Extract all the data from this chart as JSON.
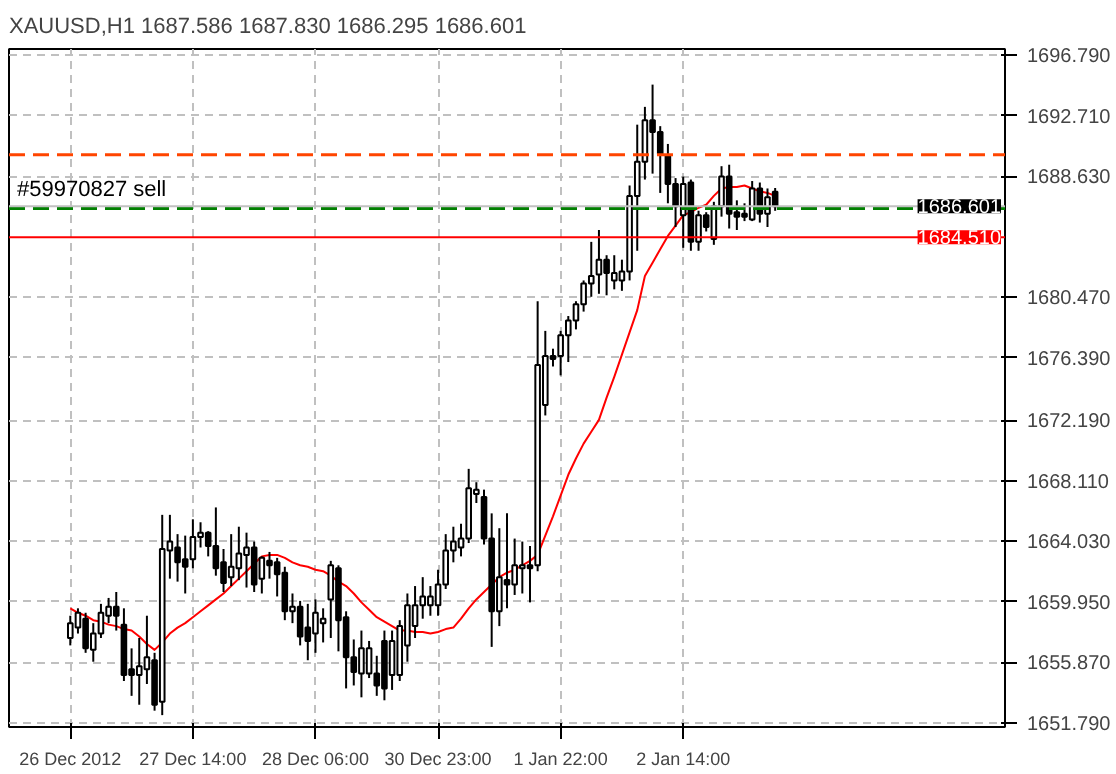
{
  "chart_data": {
    "type": "candlestick",
    "title": "XAUUSD,H1  1687.586 1687.830 1686.295 1686.601",
    "categories": [
      "26 Dec 2012",
      null,
      null,
      null,
      null,
      null,
      null,
      null,
      null,
      null,
      null,
      null,
      null,
      null,
      null,
      null,
      "27 Dec 14:00",
      null,
      null,
      null,
      null,
      null,
      null,
      null,
      null,
      null,
      null,
      null,
      null,
      null,
      null,
      null,
      "28 Dec 06:00",
      null,
      null,
      null,
      null,
      null,
      null,
      null,
      null,
      null,
      null,
      null,
      null,
      null,
      null,
      null,
      "30 Dec 23:00",
      null,
      null,
      null,
      null,
      null,
      null,
      null,
      null,
      null,
      null,
      null,
      null,
      null,
      null,
      null,
      "1 Jan 22:00",
      null,
      null,
      null,
      null,
      null,
      null,
      null,
      null,
      null,
      null,
      null,
      null,
      null,
      null,
      null,
      "2 Jan 14:00",
      null,
      null,
      null,
      null,
      null,
      null,
      null,
      null,
      null,
      null,
      null,
      null
    ],
    "ohlc": [
      [
        1657.5,
        1659.0,
        1657.0,
        1658.5
      ],
      [
        1658.2,
        1659.5,
        1657.8,
        1659.2
      ],
      [
        1658.8,
        1659.2,
        1656.5,
        1656.8
      ],
      [
        1656.7,
        1658.5,
        1655.9,
        1657.8
      ],
      [
        1657.8,
        1659.8,
        1657.5,
        1659.2
      ],
      [
        1659.0,
        1660.2,
        1658.5,
        1659.6
      ],
      [
        1659.6,
        1660.6,
        1658.0,
        1659.0
      ],
      [
        1658.4,
        1659.5,
        1654.6,
        1655.0
      ],
      [
        1655.4,
        1656.8,
        1653.6,
        1655.0
      ],
      [
        1655.0,
        1657.5,
        1653.0,
        1655.6
      ],
      [
        1655.4,
        1659.0,
        1654.4,
        1656.2
      ],
      [
        1656.0,
        1656.5,
        1652.6,
        1653.0
      ],
      [
        1653.2,
        1665.8,
        1652.3,
        1663.5
      ],
      [
        1663.4,
        1665.8,
        1661.5,
        1664.0
      ],
      [
        1663.6,
        1664.5,
        1661.3,
        1662.6
      ],
      [
        1662.8,
        1664.4,
        1660.5,
        1662.3
      ],
      [
        1662.8,
        1665.5,
        1662.2,
        1664.3
      ],
      [
        1664.3,
        1665.3,
        1663.6,
        1664.6
      ],
      [
        1664.6,
        1664.7,
        1663.0,
        1663.7
      ],
      [
        1663.7,
        1666.3,
        1661.7,
        1662.2
      ],
      [
        1662.6,
        1663.5,
        1660.6,
        1661.2
      ],
      [
        1661.6,
        1664.5,
        1661.0,
        1662.3
      ],
      [
        1662.2,
        1665.0,
        1661.4,
        1663.2
      ],
      [
        1663.1,
        1664.6,
        1660.9,
        1663.6
      ],
      [
        1663.6,
        1664.0,
        1660.6,
        1661.1
      ],
      [
        1661.5,
        1663.0,
        1660.5,
        1662.9
      ],
      [
        1662.7,
        1663.3,
        1661.5,
        1662.4
      ],
      [
        1662.6,
        1662.9,
        1660.3,
        1661.8
      ],
      [
        1661.9,
        1662.3,
        1658.7,
        1659.3
      ],
      [
        1659.3,
        1660.5,
        1658.5,
        1659.6
      ],
      [
        1659.6,
        1660.0,
        1657.0,
        1657.6
      ],
      [
        1658.2,
        1659.8,
        1656.0,
        1657.3
      ],
      [
        1657.8,
        1660.1,
        1656.5,
        1659.2
      ],
      [
        1658.5,
        1659.5,
        1657.2,
        1658.8
      ],
      [
        1660.1,
        1662.7,
        1657.5,
        1662.4
      ],
      [
        1662.2,
        1662.4,
        1656.6,
        1658.7
      ],
      [
        1658.9,
        1659.3,
        1654.1,
        1656.2
      ],
      [
        1656.2,
        1657.4,
        1654.3,
        1655.2
      ],
      [
        1655.1,
        1658.0,
        1653.5,
        1656.8
      ],
      [
        1655.1,
        1657.3,
        1654.8,
        1656.8
      ],
      [
        1655.1,
        1656.3,
        1653.6,
        1654.3
      ],
      [
        1657.3,
        1658.0,
        1653.3,
        1654.1
      ],
      [
        1655.0,
        1658.0,
        1654.0,
        1657.3
      ],
      [
        1655.0,
        1658.7,
        1654.6,
        1658.3
      ],
      [
        1657.0,
        1660.5,
        1655.9,
        1659.7
      ],
      [
        1658.3,
        1661.0,
        1657.5,
        1659.7
      ],
      [
        1659.7,
        1661.6,
        1658.8,
        1660.3
      ],
      [
        1659.7,
        1661.0,
        1659.0,
        1660.3
      ],
      [
        1659.7,
        1662.1,
        1659.0,
        1661.1
      ],
      [
        1661.1,
        1664.5,
        1660.8,
        1663.4
      ],
      [
        1663.4,
        1665.0,
        1662.6,
        1664.0
      ],
      [
        1663.6,
        1665.2,
        1663.0,
        1664.2
      ],
      [
        1664.2,
        1668.9,
        1663.9,
        1667.6
      ],
      [
        1667.2,
        1668.0,
        1666.6,
        1667.5
      ],
      [
        1667.0,
        1667.5,
        1663.8,
        1664.2
      ],
      [
        1664.2,
        1665.9,
        1656.9,
        1659.3
      ],
      [
        1659.3,
        1664.9,
        1658.3,
        1661.6
      ],
      [
        1661.4,
        1665.9,
        1659.5,
        1661.1
      ],
      [
        1661.1,
        1664.2,
        1660.4,
        1662.4
      ],
      [
        1662.2,
        1664.0,
        1660.5,
        1662.4
      ],
      [
        1662.4,
        1663.7,
        1659.9,
        1662.2
      ],
      [
        1662.4,
        1680.2,
        1662.0,
        1675.9
      ],
      [
        1673.2,
        1678.2,
        1672.5,
        1676.5
      ],
      [
        1676.5,
        1677.0,
        1675.8,
        1676.3
      ],
      [
        1676.5,
        1678.2,
        1675.2,
        1677.9
      ],
      [
        1677.9,
        1679.2,
        1676.1,
        1678.9
      ],
      [
        1678.9,
        1680.2,
        1678.3,
        1680.0
      ],
      [
        1680.0,
        1681.6,
        1679.5,
        1681.4
      ],
      [
        1681.4,
        1684.2,
        1680.5,
        1681.9
      ],
      [
        1682.0,
        1685.0,
        1680.7,
        1683.0
      ],
      [
        1683.0,
        1683.3,
        1680.6,
        1682.1
      ],
      [
        1681.6,
        1683.3,
        1681.0,
        1682.1
      ],
      [
        1681.6,
        1683.0,
        1680.9,
        1682.2
      ],
      [
        1682.2,
        1688.0,
        1681.6,
        1687.3
      ],
      [
        1687.3,
        1692.1,
        1683.6,
        1689.6
      ],
      [
        1689.6,
        1693.3,
        1688.4,
        1692.4
      ],
      [
        1692.4,
        1694.8,
        1688.8,
        1691.6
      ],
      [
        1691.6,
        1692.0,
        1687.5,
        1690.1
      ],
      [
        1690.0,
        1690.8,
        1686.8,
        1688.1
      ],
      [
        1688.1,
        1688.5,
        1685.2,
        1686.6
      ],
      [
        1686.0,
        1688.6,
        1683.8,
        1688.1
      ],
      [
        1688.2,
        1688.4,
        1683.6,
        1684.2
      ],
      [
        1684.2,
        1686.3,
        1683.6,
        1686.0
      ],
      [
        1686.0,
        1686.2,
        1684.9,
        1685.2
      ],
      [
        1684.4,
        1686.9,
        1684.0,
        1686.6
      ],
      [
        1686.6,
        1689.3,
        1685.9,
        1688.6
      ],
      [
        1688.6,
        1689.4,
        1685.1,
        1686.1
      ],
      [
        1686.2,
        1687.0,
        1685.0,
        1685.9
      ],
      [
        1686.1,
        1686.8,
        1685.6,
        1685.9
      ],
      [
        1685.7,
        1688.3,
        1685.6,
        1687.8
      ],
      [
        1687.8,
        1688.2,
        1685.5,
        1686.1
      ],
      [
        1686.1,
        1687.8,
        1685.2,
        1687.2
      ],
      [
        1687.586,
        1687.83,
        1686.295,
        1686.601
      ]
    ],
    "series": [
      {
        "type": "line",
        "color": "#ff0000",
        "values": [
          1659.5,
          1659.2,
          1659.0,
          1658.7,
          1658.6,
          1658.4,
          1658.3,
          1658.1,
          1658.0,
          1657.6,
          1657.1,
          1656.7,
          1657.2,
          1657.8,
          1658.2,
          1658.5,
          1658.9,
          1659.3,
          1659.7,
          1660.1,
          1660.5,
          1661.0,
          1661.5,
          1662.0,
          1662.5,
          1663.0,
          1663.1,
          1663.1,
          1662.9,
          1662.6,
          1662.4,
          1662.3,
          1662.1,
          1662.0,
          1661.7,
          1661.3,
          1661.0,
          1660.5,
          1659.9,
          1659.4,
          1658.9,
          1658.6,
          1658.3,
          1658.0,
          1658.0,
          1657.9,
          1657.9,
          1657.8,
          1657.9,
          1658.1,
          1658.2,
          1658.8,
          1659.5,
          1660.1,
          1660.6,
          1661.1,
          1661.6,
          1661.9,
          1662.1,
          1662.4,
          1662.7,
          1663.1,
          1664.4,
          1665.7,
          1667.1,
          1668.5,
          1669.6,
          1670.6,
          1671.4,
          1672.2,
          1673.7,
          1675.1,
          1676.6,
          1678.1,
          1679.6,
          1681.9,
          1682.8,
          1683.7,
          1684.6,
          1685.3,
          1686.0,
          1686.2,
          1686.5,
          1686.7,
          1687.3,
          1687.8,
          1687.9,
          1687.9,
          1688.0,
          1687.8,
          1687.6,
          1687.5,
          1687.3
        ]
      }
    ],
    "ylim": [
      1651.5,
      1697.2
    ],
    "yticks": [
      {
        "value": 1651.79,
        "label": "1651.790"
      },
      {
        "value": 1655.87,
        "label": "1655.870"
      },
      {
        "value": 1659.95,
        "label": "1659.950"
      },
      {
        "value": 1664.03,
        "label": "1664.030"
      },
      {
        "value": 1668.11,
        "label": "1668.110"
      },
      {
        "value": 1672.19,
        "label": "1672.190"
      },
      {
        "value": 1676.39,
        "label": "1676.390"
      },
      {
        "value": 1680.47,
        "label": "1680.470"
      },
      {
        "value": 1688.63,
        "label": "1688.630"
      },
      {
        "value": 1692.71,
        "label": "1692.710"
      },
      {
        "value": 1696.79,
        "label": "1696.790"
      }
    ],
    "ref_lines": [
      {
        "axis": "y",
        "value": 1690.08,
        "color": "#ff4500",
        "line_style": "dashed"
      },
      {
        "axis": "y",
        "value": 1686.45,
        "label": "#59970827 sell",
        "color": "#008000",
        "line_style": "dashed"
      },
      {
        "axis": "y",
        "value": 1686.601,
        "label": "1686.601",
        "color": "#c0c0c0",
        "line_style": "solid"
      },
      {
        "axis": "y",
        "value": 1684.51,
        "label": "1684.510",
        "color": "#ff0000",
        "line_style": "solid"
      }
    ],
    "grid": true
  }
}
